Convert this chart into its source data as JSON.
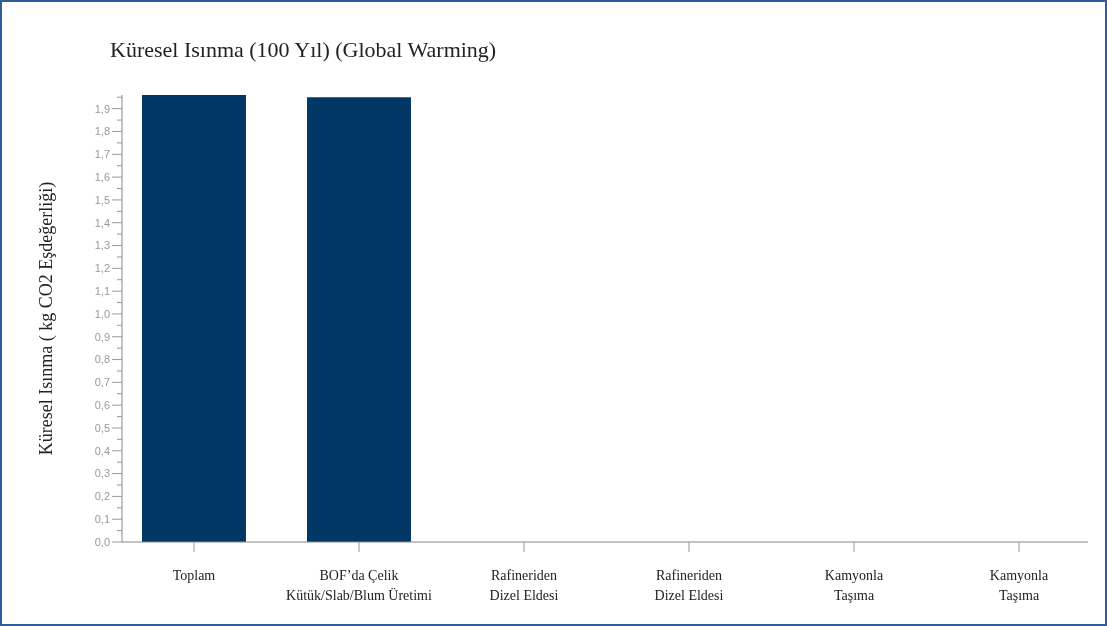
{
  "chart_data": {
    "type": "bar",
    "title": "Küresel Isınma (100 Yıl) (Global Warming)",
    "ylabel": "Küresel Isınma ( kg CO2 Eşdeğerliği)",
    "categories": [
      "Toplam",
      "BOF’da Çelik\nKütük/Slab/Blum Üretimi",
      "Rafineriden\nDizel Eldesi",
      "Rafineriden\nDizel Eldesi",
      "Kamyonla\nTaşıma",
      "Kamyonla\nTaşıma"
    ],
    "values": [
      1.96,
      1.95,
      0,
      0,
      0,
      0
    ],
    "color": "#003764",
    "ylim": [
      0,
      1.96
    ],
    "yticks": [
      {
        "value": 0,
        "label": "0,0"
      },
      {
        "value": 0.05,
        "label": null
      },
      {
        "value": 0.1,
        "label": "0,1"
      },
      {
        "value": 0.15,
        "label": null
      },
      {
        "value": 0.2,
        "label": "0,2"
      },
      {
        "value": 0.25,
        "label": null
      },
      {
        "value": 0.3,
        "label": "0,3"
      },
      {
        "value": 0.35,
        "label": null
      },
      {
        "value": 0.4,
        "label": "0,4"
      },
      {
        "value": 0.45,
        "label": null
      },
      {
        "value": 0.5,
        "label": "0,5"
      },
      {
        "value": 0.55,
        "label": null
      },
      {
        "value": 0.6,
        "label": "0,6"
      },
      {
        "value": 0.65,
        "label": null
      },
      {
        "value": 0.7,
        "label": "0,7"
      },
      {
        "value": 0.75,
        "label": null
      },
      {
        "value": 0.8,
        "label": "0,8"
      },
      {
        "value": 0.85,
        "label": null
      },
      {
        "value": 0.9,
        "label": "0,9"
      },
      {
        "value": 0.95,
        "label": null
      },
      {
        "value": 1.0,
        "label": "1,0"
      },
      {
        "value": 1.05,
        "label": null
      },
      {
        "value": 1.1,
        "label": "1,1"
      },
      {
        "value": 1.15,
        "label": null
      },
      {
        "value": 1.2,
        "label": "1,2"
      },
      {
        "value": 1.25,
        "label": null
      },
      {
        "value": 1.3,
        "label": "1,3"
      },
      {
        "value": 1.35,
        "label": null
      },
      {
        "value": 1.4,
        "label": "1,4"
      },
      {
        "value": 1.45,
        "label": null
      },
      {
        "value": 1.5,
        "label": "1,5"
      },
      {
        "value": 1.55,
        "label": null
      },
      {
        "value": 1.6,
        "label": "1,6"
      },
      {
        "value": 1.65,
        "label": null
      },
      {
        "value": 1.7,
        "label": "1,7"
      },
      {
        "value": 1.75,
        "label": null
      },
      {
        "value": 1.8,
        "label": "1,8"
      },
      {
        "value": 1.85,
        "label": null
      },
      {
        "value": 1.9,
        "label": "1,9"
      },
      {
        "value": 1.95,
        "label": null
      }
    ]
  }
}
